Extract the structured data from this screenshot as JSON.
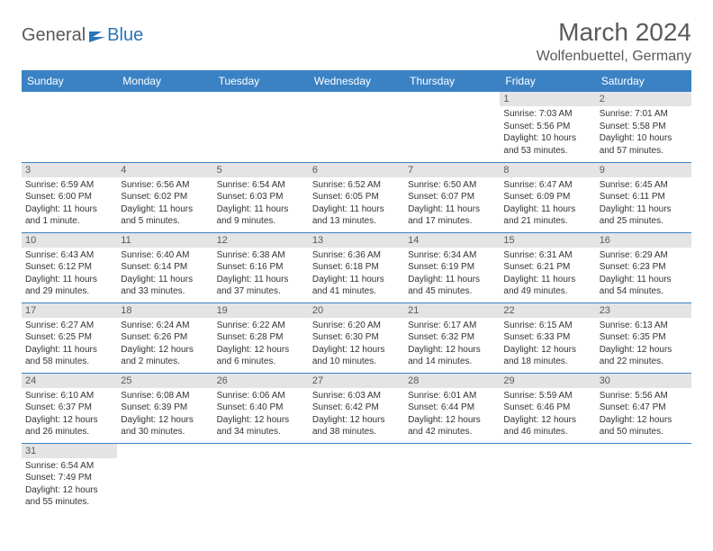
{
  "logo": {
    "general": "General",
    "blue": "Blue"
  },
  "title": "March 2024",
  "location": "Wolfenbuettel, Germany",
  "colors": {
    "header_bg": "#3b82c4",
    "header_text": "#ffffff",
    "daynum_bg": "#e4e4e4",
    "text": "#5a5a5a",
    "body_text": "#333333"
  },
  "day_headers": [
    "Sunday",
    "Monday",
    "Tuesday",
    "Wednesday",
    "Thursday",
    "Friday",
    "Saturday"
  ],
  "weeks": [
    [
      null,
      null,
      null,
      null,
      null,
      {
        "n": "1",
        "sr": "Sunrise: 7:03 AM",
        "ss": "Sunset: 5:56 PM",
        "dl": "Daylight: 10 hours and 53 minutes."
      },
      {
        "n": "2",
        "sr": "Sunrise: 7:01 AM",
        "ss": "Sunset: 5:58 PM",
        "dl": "Daylight: 10 hours and 57 minutes."
      }
    ],
    [
      {
        "n": "3",
        "sr": "Sunrise: 6:59 AM",
        "ss": "Sunset: 6:00 PM",
        "dl": "Daylight: 11 hours and 1 minute."
      },
      {
        "n": "4",
        "sr": "Sunrise: 6:56 AM",
        "ss": "Sunset: 6:02 PM",
        "dl": "Daylight: 11 hours and 5 minutes."
      },
      {
        "n": "5",
        "sr": "Sunrise: 6:54 AM",
        "ss": "Sunset: 6:03 PM",
        "dl": "Daylight: 11 hours and 9 minutes."
      },
      {
        "n": "6",
        "sr": "Sunrise: 6:52 AM",
        "ss": "Sunset: 6:05 PM",
        "dl": "Daylight: 11 hours and 13 minutes."
      },
      {
        "n": "7",
        "sr": "Sunrise: 6:50 AM",
        "ss": "Sunset: 6:07 PM",
        "dl": "Daylight: 11 hours and 17 minutes."
      },
      {
        "n": "8",
        "sr": "Sunrise: 6:47 AM",
        "ss": "Sunset: 6:09 PM",
        "dl": "Daylight: 11 hours and 21 minutes."
      },
      {
        "n": "9",
        "sr": "Sunrise: 6:45 AM",
        "ss": "Sunset: 6:11 PM",
        "dl": "Daylight: 11 hours and 25 minutes."
      }
    ],
    [
      {
        "n": "10",
        "sr": "Sunrise: 6:43 AM",
        "ss": "Sunset: 6:12 PM",
        "dl": "Daylight: 11 hours and 29 minutes."
      },
      {
        "n": "11",
        "sr": "Sunrise: 6:40 AM",
        "ss": "Sunset: 6:14 PM",
        "dl": "Daylight: 11 hours and 33 minutes."
      },
      {
        "n": "12",
        "sr": "Sunrise: 6:38 AM",
        "ss": "Sunset: 6:16 PM",
        "dl": "Daylight: 11 hours and 37 minutes."
      },
      {
        "n": "13",
        "sr": "Sunrise: 6:36 AM",
        "ss": "Sunset: 6:18 PM",
        "dl": "Daylight: 11 hours and 41 minutes."
      },
      {
        "n": "14",
        "sr": "Sunrise: 6:34 AM",
        "ss": "Sunset: 6:19 PM",
        "dl": "Daylight: 11 hours and 45 minutes."
      },
      {
        "n": "15",
        "sr": "Sunrise: 6:31 AM",
        "ss": "Sunset: 6:21 PM",
        "dl": "Daylight: 11 hours and 49 minutes."
      },
      {
        "n": "16",
        "sr": "Sunrise: 6:29 AM",
        "ss": "Sunset: 6:23 PM",
        "dl": "Daylight: 11 hours and 54 minutes."
      }
    ],
    [
      {
        "n": "17",
        "sr": "Sunrise: 6:27 AM",
        "ss": "Sunset: 6:25 PM",
        "dl": "Daylight: 11 hours and 58 minutes."
      },
      {
        "n": "18",
        "sr": "Sunrise: 6:24 AM",
        "ss": "Sunset: 6:26 PM",
        "dl": "Daylight: 12 hours and 2 minutes."
      },
      {
        "n": "19",
        "sr": "Sunrise: 6:22 AM",
        "ss": "Sunset: 6:28 PM",
        "dl": "Daylight: 12 hours and 6 minutes."
      },
      {
        "n": "20",
        "sr": "Sunrise: 6:20 AM",
        "ss": "Sunset: 6:30 PM",
        "dl": "Daylight: 12 hours and 10 minutes."
      },
      {
        "n": "21",
        "sr": "Sunrise: 6:17 AM",
        "ss": "Sunset: 6:32 PM",
        "dl": "Daylight: 12 hours and 14 minutes."
      },
      {
        "n": "22",
        "sr": "Sunrise: 6:15 AM",
        "ss": "Sunset: 6:33 PM",
        "dl": "Daylight: 12 hours and 18 minutes."
      },
      {
        "n": "23",
        "sr": "Sunrise: 6:13 AM",
        "ss": "Sunset: 6:35 PM",
        "dl": "Daylight: 12 hours and 22 minutes."
      }
    ],
    [
      {
        "n": "24",
        "sr": "Sunrise: 6:10 AM",
        "ss": "Sunset: 6:37 PM",
        "dl": "Daylight: 12 hours and 26 minutes."
      },
      {
        "n": "25",
        "sr": "Sunrise: 6:08 AM",
        "ss": "Sunset: 6:39 PM",
        "dl": "Daylight: 12 hours and 30 minutes."
      },
      {
        "n": "26",
        "sr": "Sunrise: 6:06 AM",
        "ss": "Sunset: 6:40 PM",
        "dl": "Daylight: 12 hours and 34 minutes."
      },
      {
        "n": "27",
        "sr": "Sunrise: 6:03 AM",
        "ss": "Sunset: 6:42 PM",
        "dl": "Daylight: 12 hours and 38 minutes."
      },
      {
        "n": "28",
        "sr": "Sunrise: 6:01 AM",
        "ss": "Sunset: 6:44 PM",
        "dl": "Daylight: 12 hours and 42 minutes."
      },
      {
        "n": "29",
        "sr": "Sunrise: 5:59 AM",
        "ss": "Sunset: 6:46 PM",
        "dl": "Daylight: 12 hours and 46 minutes."
      },
      {
        "n": "30",
        "sr": "Sunrise: 5:56 AM",
        "ss": "Sunset: 6:47 PM",
        "dl": "Daylight: 12 hours and 50 minutes."
      }
    ],
    [
      {
        "n": "31",
        "sr": "Sunrise: 6:54 AM",
        "ss": "Sunset: 7:49 PM",
        "dl": "Daylight: 12 hours and 55 minutes."
      },
      null,
      null,
      null,
      null,
      null,
      null
    ]
  ]
}
